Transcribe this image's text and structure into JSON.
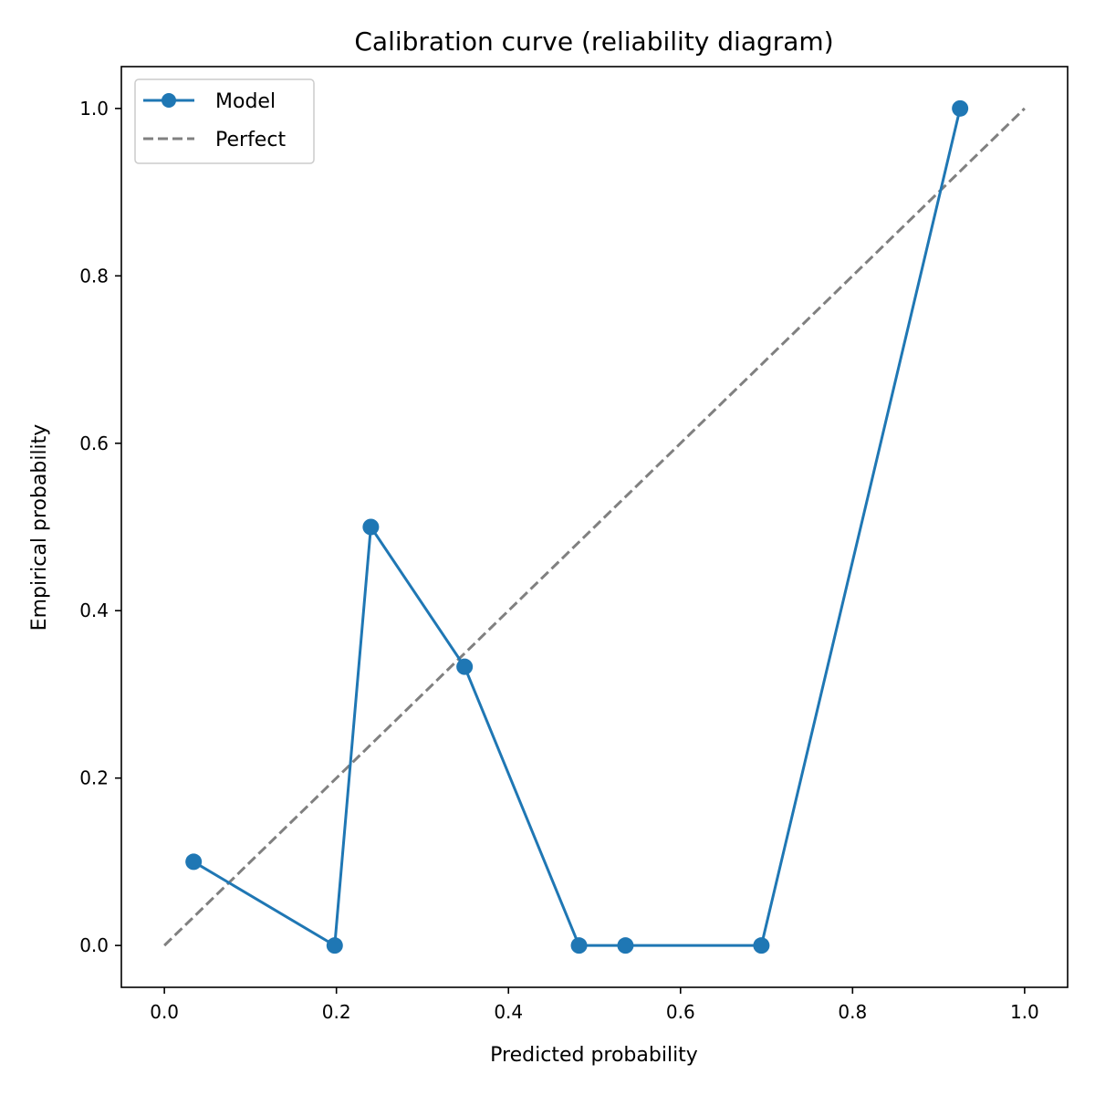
{
  "chart_data": {
    "type": "line",
    "title": "Calibration curve (reliability diagram)",
    "xlabel": "Predicted probability",
    "ylabel": "Empirical probability",
    "xlim": [
      -0.05,
      1.05
    ],
    "ylim": [
      -0.05,
      1.05
    ],
    "xticks": [
      "0.0",
      "0.2",
      "0.4",
      "0.6",
      "0.8",
      "1.0"
    ],
    "yticks": [
      "0.0",
      "0.2",
      "0.4",
      "0.6",
      "0.8",
      "1.0"
    ],
    "grid": false,
    "legend_position": "top-left",
    "series": [
      {
        "name": "Model",
        "style": "solid-with-markers",
        "color": "#1f77b4",
        "x": [
          0.034,
          0.198,
          0.24,
          0.349,
          0.482,
          0.536,
          0.694,
          0.925
        ],
        "y": [
          0.1,
          0.0,
          0.5,
          0.333,
          0.0,
          0.0,
          0.0,
          1.0
        ]
      },
      {
        "name": "Perfect",
        "style": "dashed",
        "color": "#808080",
        "x": [
          0.0,
          1.0
        ],
        "y": [
          0.0,
          1.0
        ]
      }
    ]
  }
}
